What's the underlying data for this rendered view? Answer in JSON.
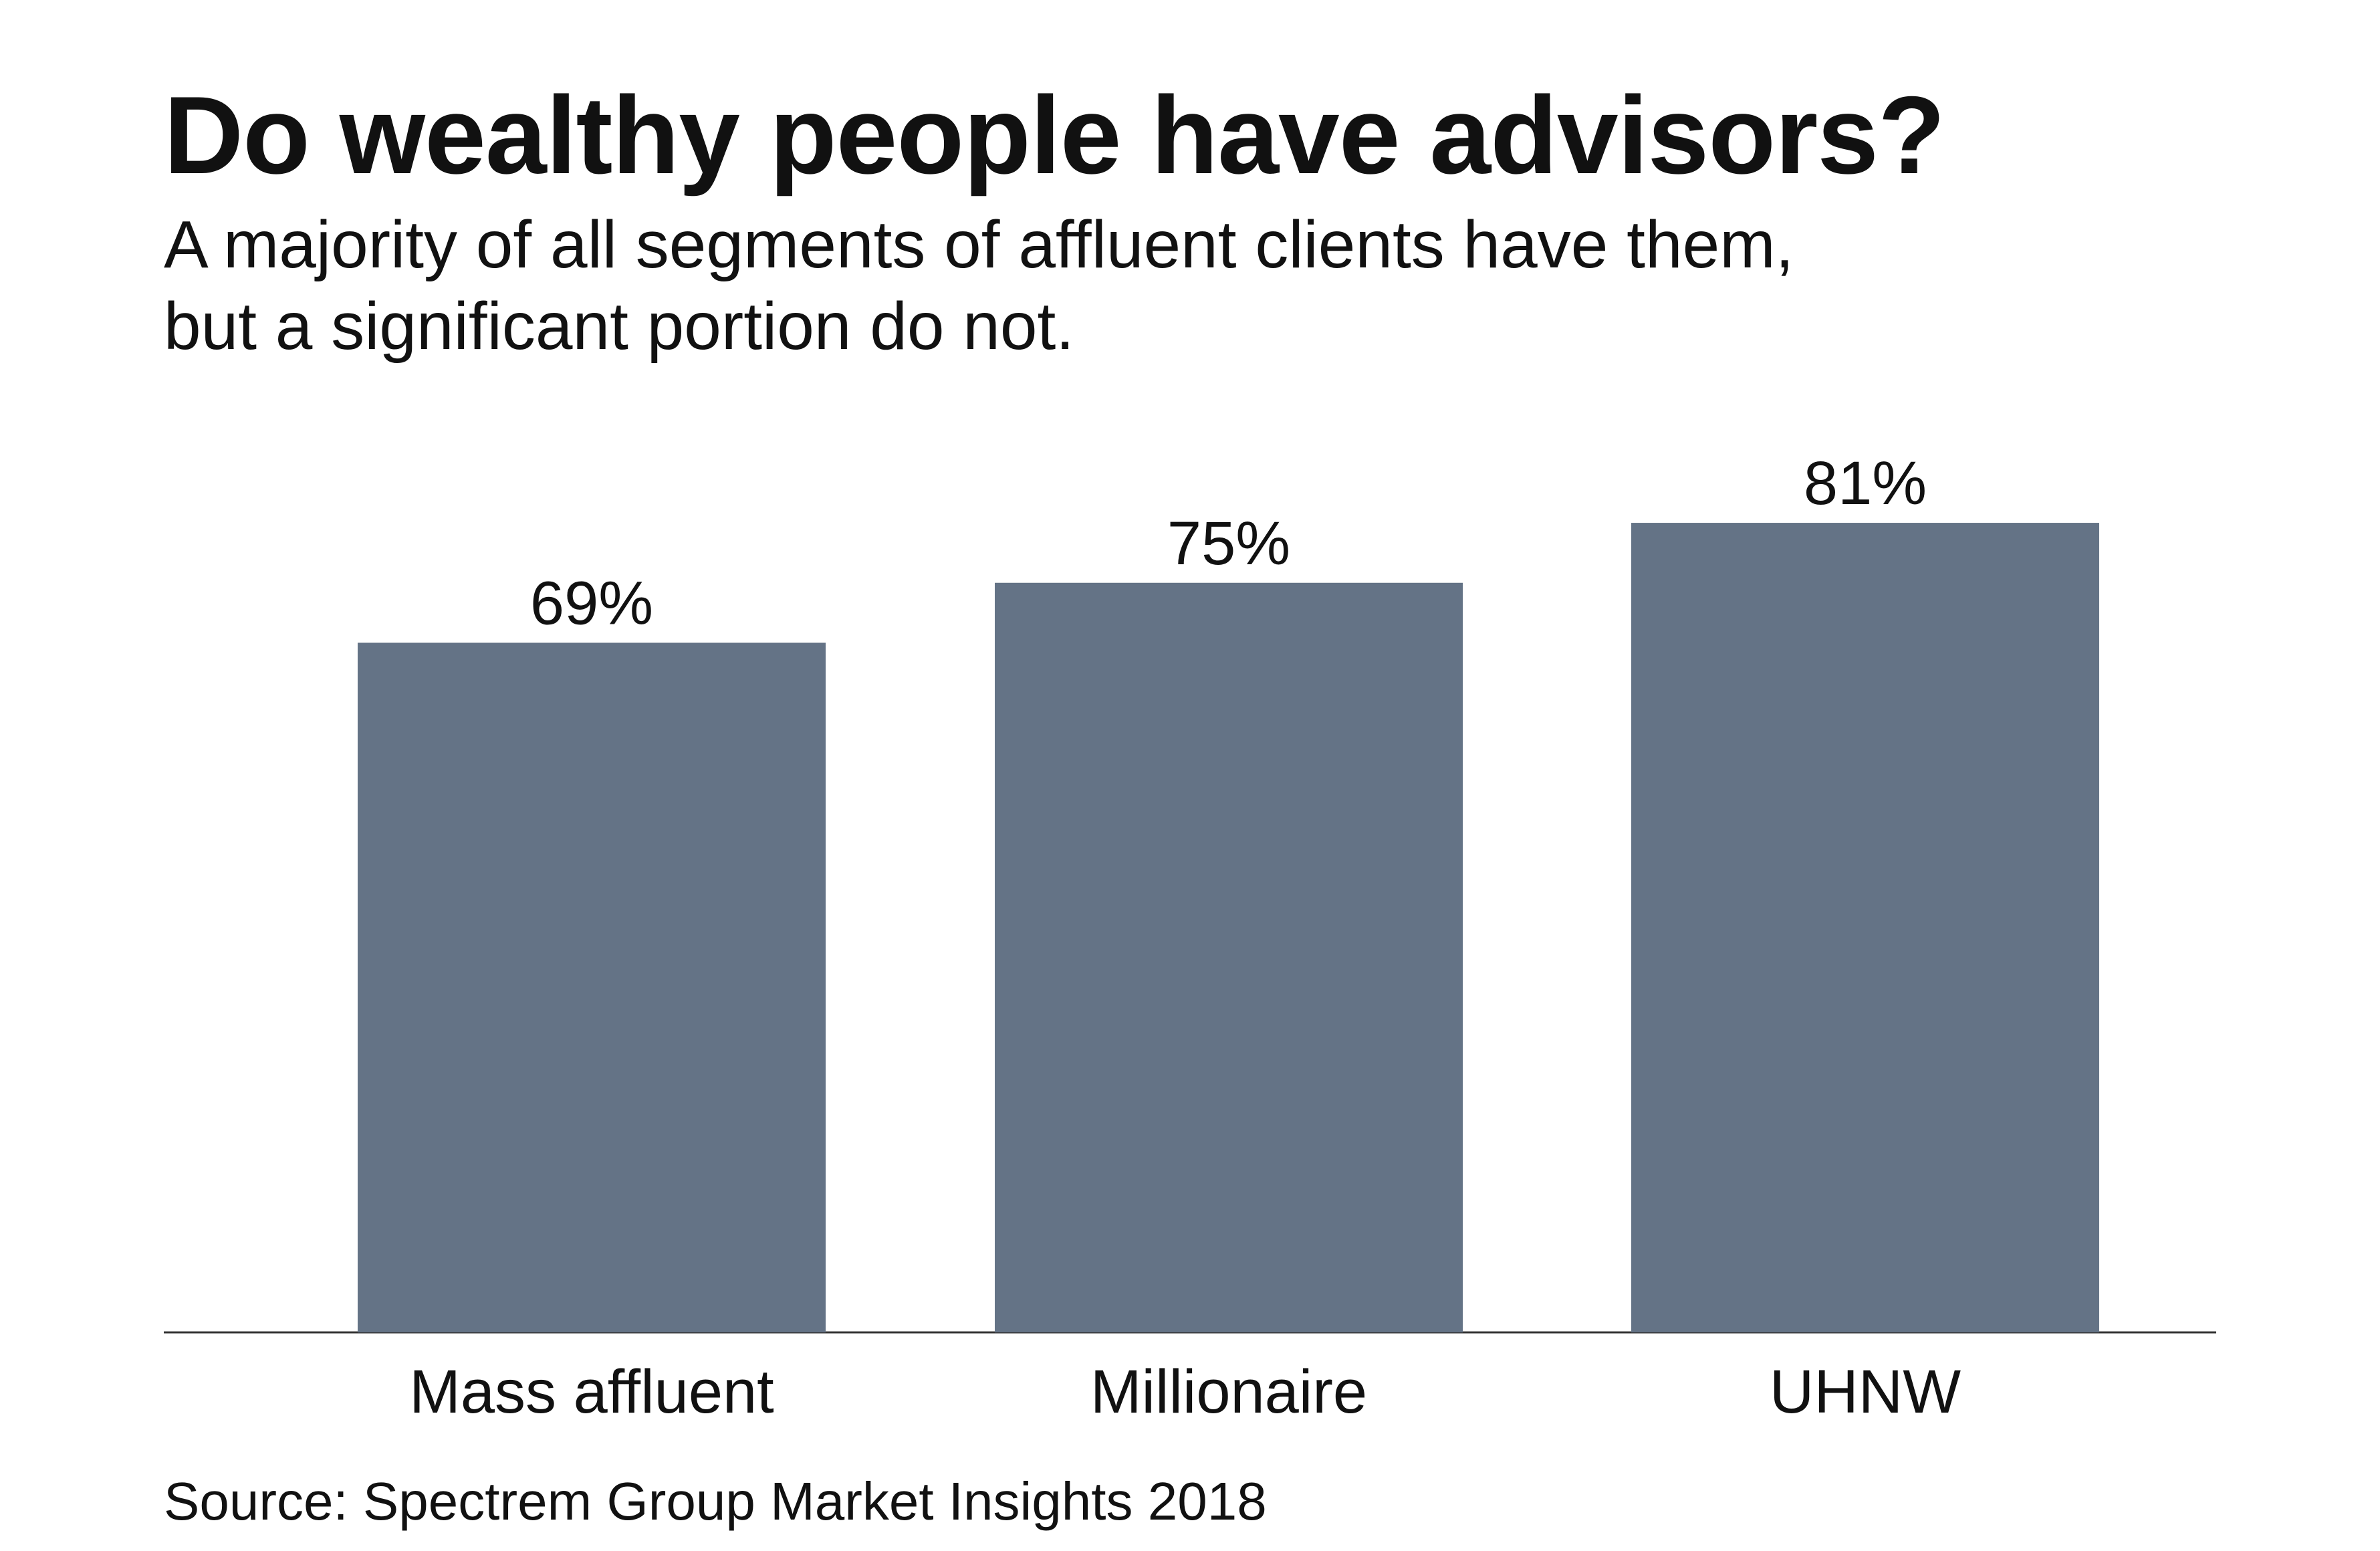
{
  "chart_data": {
    "type": "bar",
    "title": "Do wealthy people have advisors?",
    "subtitle_lines": [
      "A majority of all segments of affluent clients have them,",
      "but a significant portion do not."
    ],
    "categories": [
      "Mass affluent",
      "Millionaire",
      "UHNW"
    ],
    "values": [
      69,
      75,
      81
    ],
    "value_labels": [
      "69%",
      "75%",
      "81%"
    ],
    "unit": "%",
    "xlabel": "",
    "ylabel": "",
    "ylim": [
      0,
      100
    ],
    "grid": false,
    "legend": "none",
    "bar_color": "#647386",
    "baseline_color": "#333333"
  },
  "source": "Source: Spectrem Group Market Insights 2018"
}
